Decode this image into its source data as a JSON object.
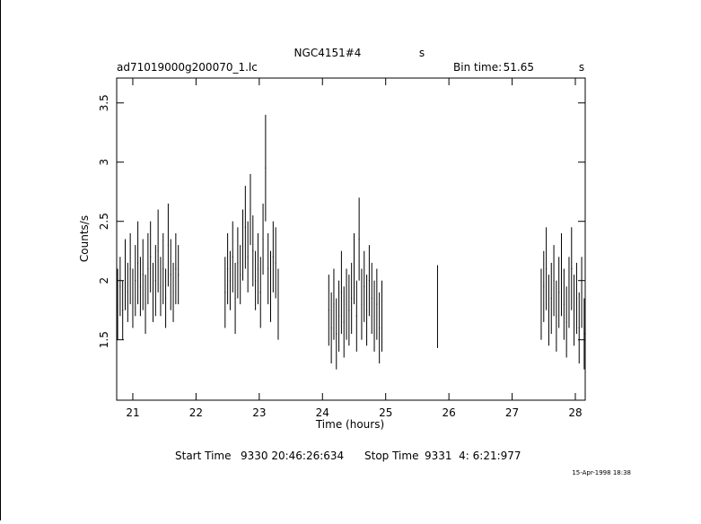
{
  "chart_data": {
    "type": "errorbar",
    "title": "NGC4151#4",
    "title_unit": "s",
    "file": "ad71019000g200070_1.lc",
    "bin_time_label": "Bin time:",
    "bin_time": 51.65,
    "bin_time_unit": "s",
    "xlabel": "Time (hours)",
    "ylabel": "Counts/s",
    "xlim": [
      20.745,
      28.156
    ],
    "ylim": [
      0.99,
      3.71
    ],
    "xticks": [
      21,
      22,
      23,
      24,
      25,
      26,
      27,
      28
    ],
    "yticks": [
      1.5,
      2,
      2.5,
      3,
      3.5
    ],
    "color": "#000000",
    "x": [
      20.76,
      20.8,
      20.84,
      20.88,
      20.92,
      20.96,
      21.0,
      21.04,
      21.08,
      21.12,
      21.16,
      21.2,
      21.24,
      21.28,
      21.32,
      21.36,
      21.4,
      21.44,
      21.48,
      21.52,
      21.56,
      21.6,
      21.64,
      21.68,
      21.72,
      22.46,
      22.5,
      22.54,
      22.58,
      22.62,
      22.66,
      22.7,
      22.74,
      22.78,
      22.82,
      22.86,
      22.9,
      22.94,
      22.98,
      23.02,
      23.06,
      23.1,
      23.14,
      23.18,
      23.22,
      23.26,
      23.3,
      24.1,
      24.14,
      24.18,
      24.22,
      24.26,
      24.3,
      24.34,
      24.38,
      24.42,
      24.46,
      24.5,
      24.54,
      24.58,
      24.62,
      24.66,
      24.7,
      24.74,
      24.78,
      24.82,
      24.86,
      24.9,
      24.94,
      25.82,
      27.46,
      27.5,
      27.54,
      27.58,
      27.62,
      27.66,
      27.7,
      27.74,
      27.78,
      27.82,
      27.86,
      27.9,
      27.94,
      27.98,
      28.02,
      28.06,
      28.1,
      28.14
    ],
    "values": [
      1.8,
      1.95,
      1.75,
      2.05,
      1.9,
      2.1,
      1.85,
      2.0,
      2.15,
      1.95,
      2.05,
      1.8,
      2.1,
      2.2,
      1.9,
      2.0,
      2.25,
      1.95,
      2.1,
      1.85,
      2.3,
      2.05,
      1.9,
      2.1,
      2.05,
      1.9,
      2.1,
      2.0,
      2.2,
      1.85,
      2.15,
      2.05,
      2.3,
      2.45,
      2.2,
      2.6,
      2.25,
      2.0,
      2.1,
      1.9,
      2.35,
      2.95,
      2.1,
      1.95,
      2.2,
      2.15,
      1.8,
      1.75,
      1.6,
      1.8,
      1.55,
      1.7,
      1.9,
      1.65,
      1.8,
      1.75,
      1.85,
      2.1,
      1.7,
      2.35,
      1.8,
      1.95,
      1.75,
      2.0,
      1.85,
      1.7,
      1.8,
      1.6,
      1.7,
      1.78,
      1.8,
      1.95,
      2.1,
      1.75,
      1.85,
      2.0,
      1.7,
      1.9,
      2.05,
      1.8,
      1.65,
      1.9,
      2.1,
      1.75,
      1.85,
      1.6,
      1.9,
      1.55
    ],
    "errors": [
      0.3,
      0.25,
      0.25,
      0.3,
      0.25,
      0.3,
      0.25,
      0.3,
      0.35,
      0.25,
      0.3,
      0.25,
      0.3,
      0.3,
      0.25,
      0.3,
      0.35,
      0.25,
      0.3,
      0.25,
      0.35,
      0.3,
      0.25,
      0.3,
      0.25,
      0.3,
      0.3,
      0.25,
      0.3,
      0.3,
      0.3,
      0.25,
      0.3,
      0.35,
      0.3,
      0.3,
      0.3,
      0.25,
      0.3,
      0.3,
      0.3,
      0.45,
      0.3,
      0.3,
      0.3,
      0.3,
      0.3,
      0.3,
      0.3,
      0.3,
      0.3,
      0.3,
      0.35,
      0.3,
      0.3,
      0.3,
      0.3,
      0.3,
      0.3,
      0.35,
      0.3,
      0.3,
      0.3,
      0.3,
      0.3,
      0.3,
      0.3,
      0.3,
      0.3,
      0.35,
      0.3,
      0.3,
      0.35,
      0.3,
      0.3,
      0.3,
      0.3,
      0.3,
      0.35,
      0.3,
      0.3,
      0.3,
      0.35,
      0.3,
      0.3,
      0.3,
      0.3,
      0.3
    ],
    "start_label": "Start Time",
    "start": "9330 20:46:26:634",
    "stop_label": "Stop Time",
    "stop": "9331  4: 6:21:977",
    "date": "15-Apr-1998 18:38"
  }
}
